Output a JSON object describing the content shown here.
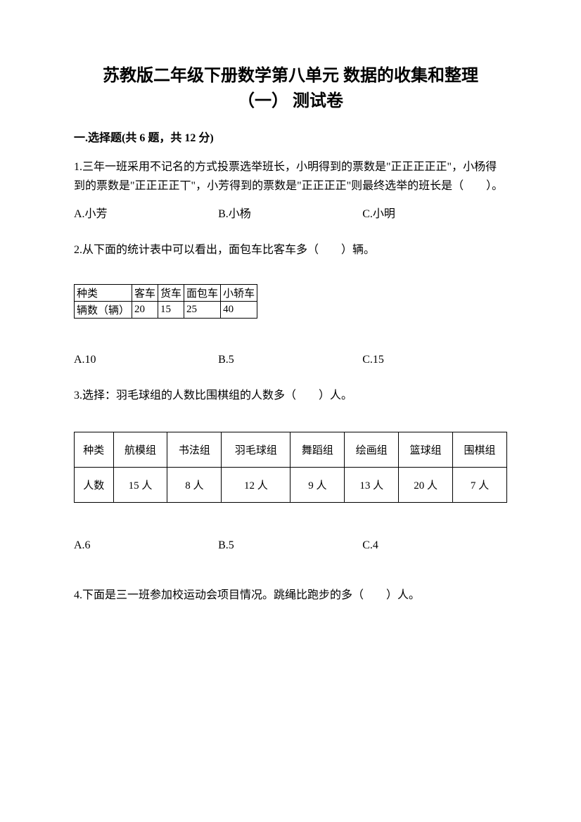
{
  "title_line1": "苏教版二年级下册数学第八单元 数据的收集和整理",
  "title_line2": "（一） 测试卷",
  "section1_header": "一.选择题(共 6 题，共 12 分)",
  "q1": {
    "text": "1.三年一班采用不记名的方式投票选举班长，小明得到的票数是\"正正正正正\"，小杨得到的票数是\"正正正正丅\"，小芳得到的票数是\"正正正正\"则最终选举的班长是（　　）。",
    "optA": "A.小芳",
    "optB": "B.小杨",
    "optC": "C.小明"
  },
  "q2": {
    "text": "2.从下面的统计表中可以看出，面包车比客车多（　　）辆。",
    "table": {
      "headers": [
        "种类",
        "客车",
        "货车",
        "面包车",
        "小轿车"
      ],
      "row_label": "辆数（辆）",
      "values": [
        "20",
        "15",
        "25",
        "40"
      ]
    },
    "optA": "A.10",
    "optB": "B.5",
    "optC": "C.15"
  },
  "q3": {
    "text": "3.选择：羽毛球组的人数比围棋组的人数多（　　）人。",
    "table": {
      "headers": [
        "种类",
        "航模组",
        "书法组",
        "羽毛球组",
        "舞蹈组",
        "绘画组",
        "篮球组",
        "围棋组"
      ],
      "row_label": "人数",
      "values": [
        "15 人",
        "8 人",
        "12 人",
        "9 人",
        "13 人",
        "20 人",
        "7 人"
      ]
    },
    "optA": "A.6",
    "optB": "B.5",
    "optC": "C.4"
  },
  "q4": {
    "text": "4.下面是三一班参加校运动会项目情况。跳绳比跑步的多（　　）人。"
  }
}
